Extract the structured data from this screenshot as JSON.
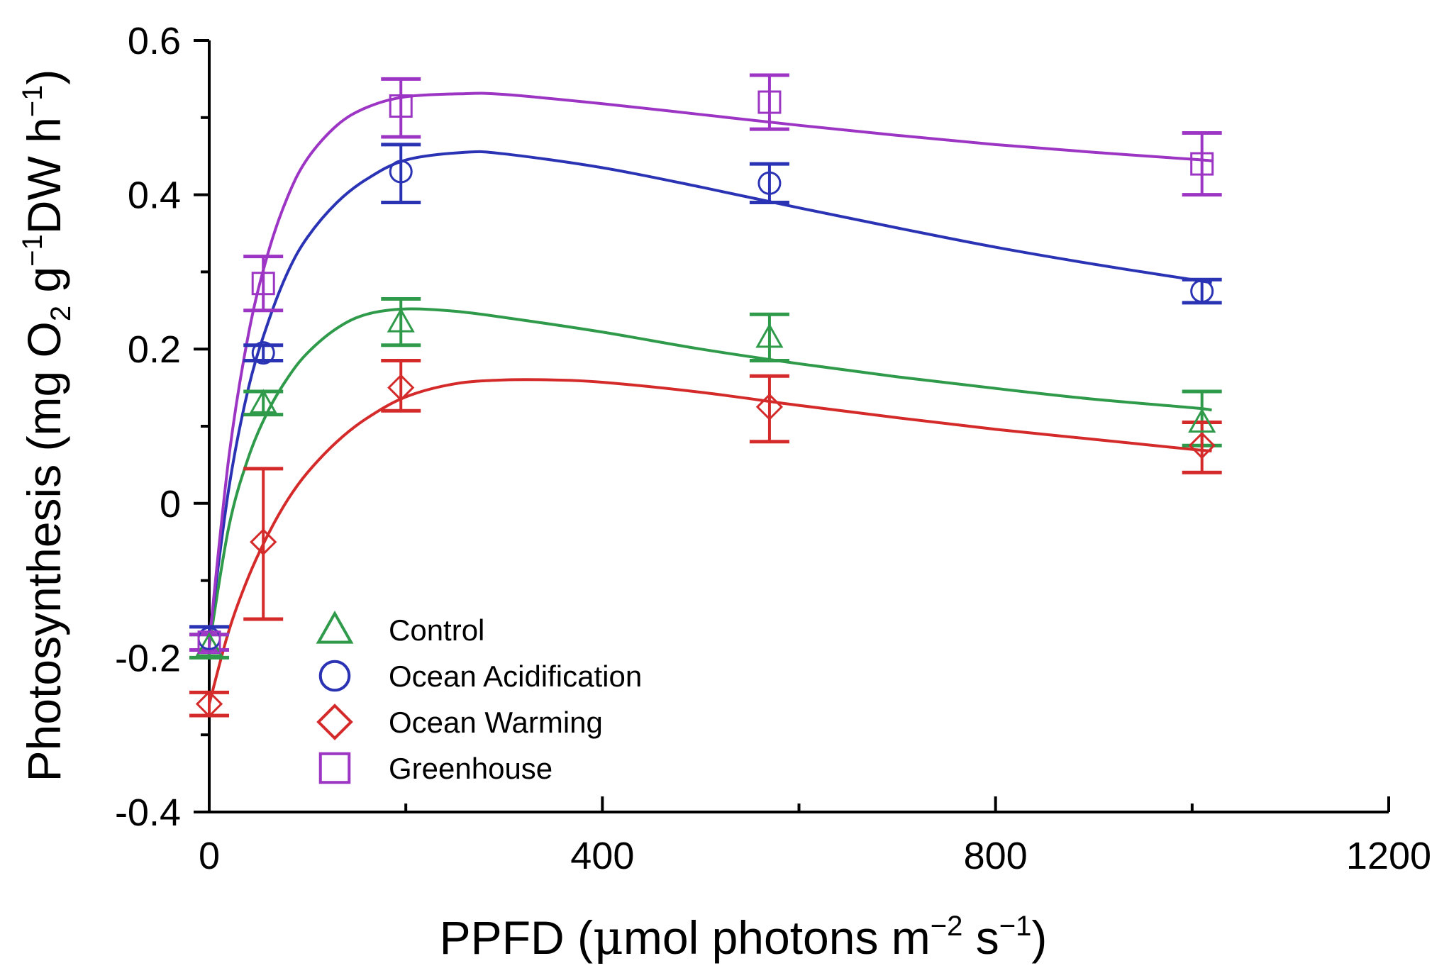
{
  "chart_data": {
    "type": "scatter",
    "title": "",
    "xlabel": {
      "main": "PPFD (",
      "mu": "μ",
      "rest": "mol photons m",
      "sup1": "−2",
      "mid": " s",
      "sup2": "−1",
      "end": ")"
    },
    "ylabel": {
      "main": "Photosynthesis (mg O",
      "sub": "2",
      "mid": " g",
      "sup1": "−1",
      "mid2": "DW h",
      "sup2": "−1",
      "end": ")"
    },
    "xlim": [
      0,
      1200
    ],
    "ylim": [
      -0.4,
      0.6
    ],
    "x_ticks": [
      0,
      400,
      800,
      1200
    ],
    "x_tick_labels": [
      "0",
      "400",
      "800",
      "1200"
    ],
    "x_minor_ticks": [
      200,
      600,
      1000
    ],
    "y_ticks": [
      -0.4,
      -0.2,
      0,
      0.2,
      0.4,
      0.6
    ],
    "y_tick_labels": [
      "-0.4",
      "-0.2",
      "0",
      "0.2",
      "0.4",
      "0.6"
    ],
    "y_minor_ticks": [
      -0.3,
      -0.1,
      0.1,
      0.3,
      0.5
    ],
    "legend_position": "bottom-left",
    "series": [
      {
        "name": "Control",
        "color": "#2e9a4a",
        "marker": "triangle",
        "x": [
          0,
          55,
          195,
          570,
          1010
        ],
        "y": [
          -0.185,
          0.13,
          0.235,
          0.215,
          0.105
        ],
        "err_low": [
          -0.2,
          0.115,
          0.205,
          0.185,
          0.075
        ],
        "err_high": [
          -0.17,
          0.145,
          0.265,
          0.245,
          0.145
        ],
        "curve_x": [
          0,
          20,
          40,
          60,
          80,
          100,
          130,
          160,
          200,
          250,
          300,
          400,
          500,
          600,
          700,
          800,
          900,
          1000,
          1020
        ],
        "curve_y": [
          -0.185,
          -0.03,
          0.06,
          0.12,
          0.163,
          0.195,
          0.227,
          0.245,
          0.252,
          0.249,
          0.241,
          0.222,
          0.2,
          0.181,
          0.164,
          0.149,
          0.135,
          0.124,
          0.121
        ]
      },
      {
        "name": "Ocean Acidification",
        "color": "#2b33b5",
        "marker": "circle",
        "x": [
          0,
          55,
          195,
          570,
          1010
        ],
        "y": [
          -0.175,
          0.195,
          0.43,
          0.415,
          0.275
        ],
        "err_low": [
          -0.19,
          0.185,
          0.39,
          0.39,
          0.26
        ],
        "err_high": [
          -0.16,
          0.205,
          0.465,
          0.44,
          0.29
        ],
        "curve_x": [
          0,
          20,
          40,
          60,
          80,
          100,
          130,
          160,
          200,
          260,
          300,
          400,
          500,
          600,
          700,
          800,
          900,
          1000,
          1020
        ],
        "curve_y": [
          -0.175,
          0.02,
          0.15,
          0.235,
          0.3,
          0.345,
          0.39,
          0.42,
          0.445,
          0.455,
          0.453,
          0.435,
          0.41,
          0.383,
          0.357,
          0.332,
          0.31,
          0.29,
          0.286
        ]
      },
      {
        "name": "Ocean Warming",
        "color": "#d42a2a",
        "marker": "diamond",
        "x": [
          0,
          55,
          195,
          570,
          1010
        ],
        "y": [
          -0.26,
          -0.05,
          0.15,
          0.125,
          0.075
        ],
        "err_low": [
          -0.275,
          -0.15,
          0.12,
          0.08,
          0.04
        ],
        "err_high": [
          -0.245,
          0.045,
          0.185,
          0.165,
          0.105
        ],
        "curve_x": [
          0,
          20,
          40,
          60,
          80,
          100,
          130,
          160,
          200,
          250,
          300,
          350,
          400,
          500,
          600,
          700,
          800,
          900,
          1000,
          1020
        ],
        "curve_y": [
          -0.26,
          -0.165,
          -0.095,
          -0.04,
          0.005,
          0.04,
          0.08,
          0.11,
          0.138,
          0.155,
          0.16,
          0.16,
          0.157,
          0.144,
          0.127,
          0.111,
          0.096,
          0.083,
          0.07,
          0.068
        ]
      },
      {
        "name": "Greenhouse",
        "color": "#9c35c4",
        "marker": "square",
        "x": [
          0,
          55,
          195,
          570,
          1010
        ],
        "y": [
          -0.18,
          0.285,
          0.515,
          0.52,
          0.44
        ],
        "err_low": [
          -0.19,
          0.25,
          0.475,
          0.485,
          0.4
        ],
        "err_high": [
          -0.17,
          0.32,
          0.55,
          0.555,
          0.48
        ],
        "curve_x": [
          0,
          20,
          40,
          60,
          80,
          100,
          130,
          160,
          200,
          260,
          300,
          400,
          500,
          600,
          700,
          800,
          900,
          1000,
          1020
        ],
        "curve_y": [
          -0.18,
          0.06,
          0.22,
          0.325,
          0.398,
          0.447,
          0.49,
          0.513,
          0.527,
          0.531,
          0.53,
          0.518,
          0.504,
          0.49,
          0.477,
          0.465,
          0.455,
          0.446,
          0.444
        ]
      }
    ]
  }
}
